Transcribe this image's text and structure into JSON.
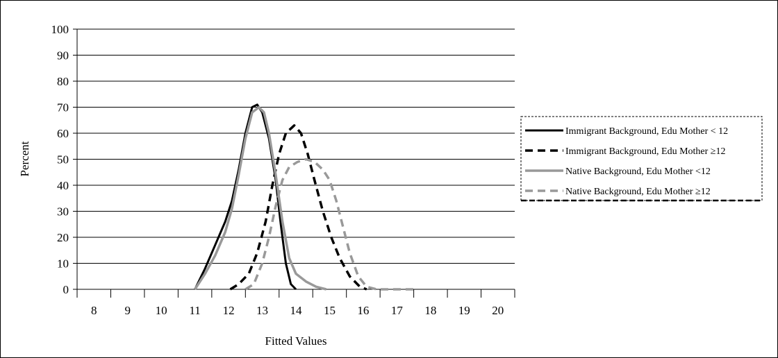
{
  "chart_data": {
    "type": "line",
    "title": "",
    "xlabel": "Fitted Values",
    "ylabel": "Percent",
    "xlim": [
      7.5,
      20.5
    ],
    "ylim": [
      0,
      100
    ],
    "x_ticks": [
      8,
      9,
      10,
      11,
      12,
      13,
      14,
      15,
      16,
      17,
      18,
      19,
      20
    ],
    "y_ticks": [
      0,
      10,
      20,
      30,
      40,
      50,
      60,
      70,
      80,
      90,
      100
    ],
    "grid": "horizontal",
    "legend_position": "right",
    "series": [
      {
        "name": "Immigrant Background, Edu Mother < 12",
        "style": "solid-black",
        "color": "#000000",
        "points": [
          [
            11.0,
            0
          ],
          [
            11.3,
            8
          ],
          [
            11.6,
            17
          ],
          [
            11.9,
            26
          ],
          [
            12.1,
            34
          ],
          [
            12.3,
            46
          ],
          [
            12.5,
            60
          ],
          [
            12.7,
            70
          ],
          [
            12.85,
            71
          ],
          [
            13.0,
            68
          ],
          [
            13.2,
            58
          ],
          [
            13.4,
            42
          ],
          [
            13.55,
            25
          ],
          [
            13.7,
            10
          ],
          [
            13.85,
            2
          ],
          [
            14.0,
            0
          ]
        ]
      },
      {
        "name": "Immigrant Background, Edu Mother ≥12",
        "style": "dashed-black",
        "color": "#000000",
        "points": [
          [
            12.05,
            0
          ],
          [
            12.3,
            2
          ],
          [
            12.6,
            6
          ],
          [
            12.85,
            14
          ],
          [
            13.1,
            26
          ],
          [
            13.3,
            40
          ],
          [
            13.5,
            52
          ],
          [
            13.7,
            60
          ],
          [
            13.95,
            63
          ],
          [
            14.15,
            60
          ],
          [
            14.35,
            52
          ],
          [
            14.55,
            42
          ],
          [
            14.8,
            30
          ],
          [
            15.05,
            20
          ],
          [
            15.3,
            12
          ],
          [
            15.6,
            5
          ],
          [
            15.9,
            1
          ],
          [
            16.1,
            0
          ]
        ]
      },
      {
        "name": "Native Background, Edu Mother <12",
        "style": "solid-gray",
        "color": "#999999",
        "points": [
          [
            11.0,
            0
          ],
          [
            11.3,
            6
          ],
          [
            11.6,
            13
          ],
          [
            11.9,
            22
          ],
          [
            12.1,
            31
          ],
          [
            12.3,
            44
          ],
          [
            12.5,
            58
          ],
          [
            12.7,
            68
          ],
          [
            12.9,
            70
          ],
          [
            13.05,
            68
          ],
          [
            13.2,
            60
          ],
          [
            13.4,
            44
          ],
          [
            13.6,
            26
          ],
          [
            13.8,
            12
          ],
          [
            14.0,
            6
          ],
          [
            14.3,
            3
          ],
          [
            14.6,
            1
          ],
          [
            14.9,
            0
          ]
        ]
      },
      {
        "name": "Native Background,  Edu Mother ≥12",
        "style": "dashed-gray",
        "color": "#999999",
        "points": [
          [
            12.5,
            0
          ],
          [
            12.75,
            2
          ],
          [
            13.0,
            10
          ],
          [
            13.2,
            20
          ],
          [
            13.4,
            32
          ],
          [
            13.6,
            42
          ],
          [
            13.8,
            47
          ],
          [
            14.05,
            49
          ],
          [
            14.3,
            50
          ],
          [
            14.55,
            49
          ],
          [
            14.8,
            46
          ],
          [
            15.0,
            42
          ],
          [
            15.2,
            34
          ],
          [
            15.4,
            24
          ],
          [
            15.6,
            14
          ],
          [
            15.85,
            5
          ],
          [
            16.1,
            1
          ],
          [
            16.4,
            0
          ],
          [
            17.0,
            0
          ],
          [
            17.5,
            0
          ]
        ]
      }
    ]
  }
}
